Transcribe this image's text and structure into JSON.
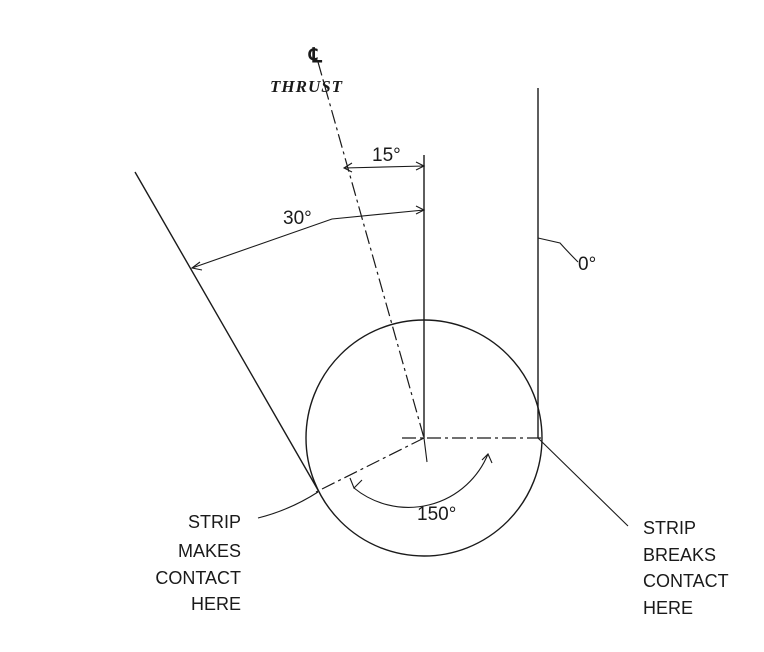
{
  "centerline": {
    "symbol": "℄",
    "label": "THRUST"
  },
  "dimensions": {
    "angle_15": "15°",
    "angle_30": "30°",
    "angle_0": "0°",
    "angle_150": "150°"
  },
  "notes": {
    "left": [
      "STRIP",
      "MAKES",
      "CONTACT",
      "HERE"
    ],
    "right": [
      "STRIP",
      "BREAKS",
      "CONTACT",
      "HERE"
    ]
  }
}
